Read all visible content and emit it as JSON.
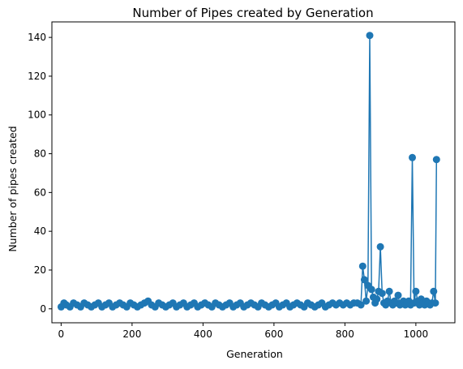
{
  "chart_data": {
    "type": "line",
    "title": "Number of Pipes created by Generation",
    "xlabel": "Generation",
    "ylabel": "Number of pipes created",
    "xlim": [
      -26,
      1110
    ],
    "ylim": [
      -7.2,
      148
    ],
    "x_ticks": [
      0,
      200,
      400,
      600,
      800,
      1000
    ],
    "y_ticks": [
      0,
      20,
      40,
      60,
      80,
      100,
      120,
      140
    ],
    "grid": false,
    "legend": "none",
    "marker": "circle",
    "color": "#1f77b4",
    "series": [
      {
        "x": [
          0,
          8,
          15,
          25,
          35,
          45,
          55,
          65,
          75,
          85,
          95,
          105,
          115,
          125,
          135,
          145,
          155,
          165,
          175,
          185,
          195,
          205,
          215,
          225,
          235,
          245,
          255,
          265,
          275,
          285,
          295,
          305,
          315,
          325,
          335,
          345,
          355,
          365,
          375,
          385,
          395,
          405,
          415,
          425,
          435,
          445,
          455,
          465,
          475,
          485,
          495,
          505,
          515,
          525,
          535,
          545,
          555,
          565,
          575,
          585,
          595,
          605,
          615,
          625,
          635,
          645,
          655,
          665,
          675,
          685,
          695,
          705,
          715,
          725,
          735,
          745,
          755,
          765,
          775,
          785,
          795,
          805,
          815,
          825,
          835,
          845,
          850,
          855,
          860,
          865,
          870,
          875,
          880,
          885,
          890,
          895,
          900,
          905,
          910,
          915,
          920,
          925,
          930,
          935,
          940,
          945,
          950,
          955,
          960,
          965,
          970,
          975,
          980,
          985,
          990,
          995,
          1000,
          1005,
          1010,
          1015,
          1020,
          1025,
          1030,
          1035,
          1040,
          1045,
          1050,
          1055,
          1058
        ],
        "y": [
          1,
          3,
          2,
          1,
          3,
          2,
          1,
          3,
          2,
          1,
          2,
          3,
          1,
          2,
          3,
          1,
          2,
          3,
          2,
          1,
          3,
          2,
          1,
          2,
          3,
          4,
          2,
          1,
          3,
          2,
          1,
          2,
          3,
          1,
          2,
          3,
          1,
          2,
          3,
          1,
          2,
          3,
          2,
          1,
          3,
          2,
          1,
          2,
          3,
          1,
          2,
          3,
          1,
          2,
          3,
          2,
          1,
          3,
          2,
          1,
          2,
          3,
          1,
          2,
          3,
          1,
          2,
          3,
          2,
          1,
          3,
          2,
          1,
          2,
          3,
          1,
          2,
          3,
          2,
          3,
          2,
          3,
          2,
          3,
          3,
          2,
          22,
          15,
          4,
          12,
          141,
          10,
          6,
          3,
          5,
          9,
          32,
          8,
          3,
          2,
          4,
          9,
          3,
          2,
          4,
          3,
          7,
          2,
          3,
          4,
          2,
          3,
          4,
          2,
          78,
          3,
          9,
          4,
          2,
          5,
          3,
          2,
          4,
          3,
          2,
          3,
          9,
          3,
          77
        ]
      }
    ]
  }
}
